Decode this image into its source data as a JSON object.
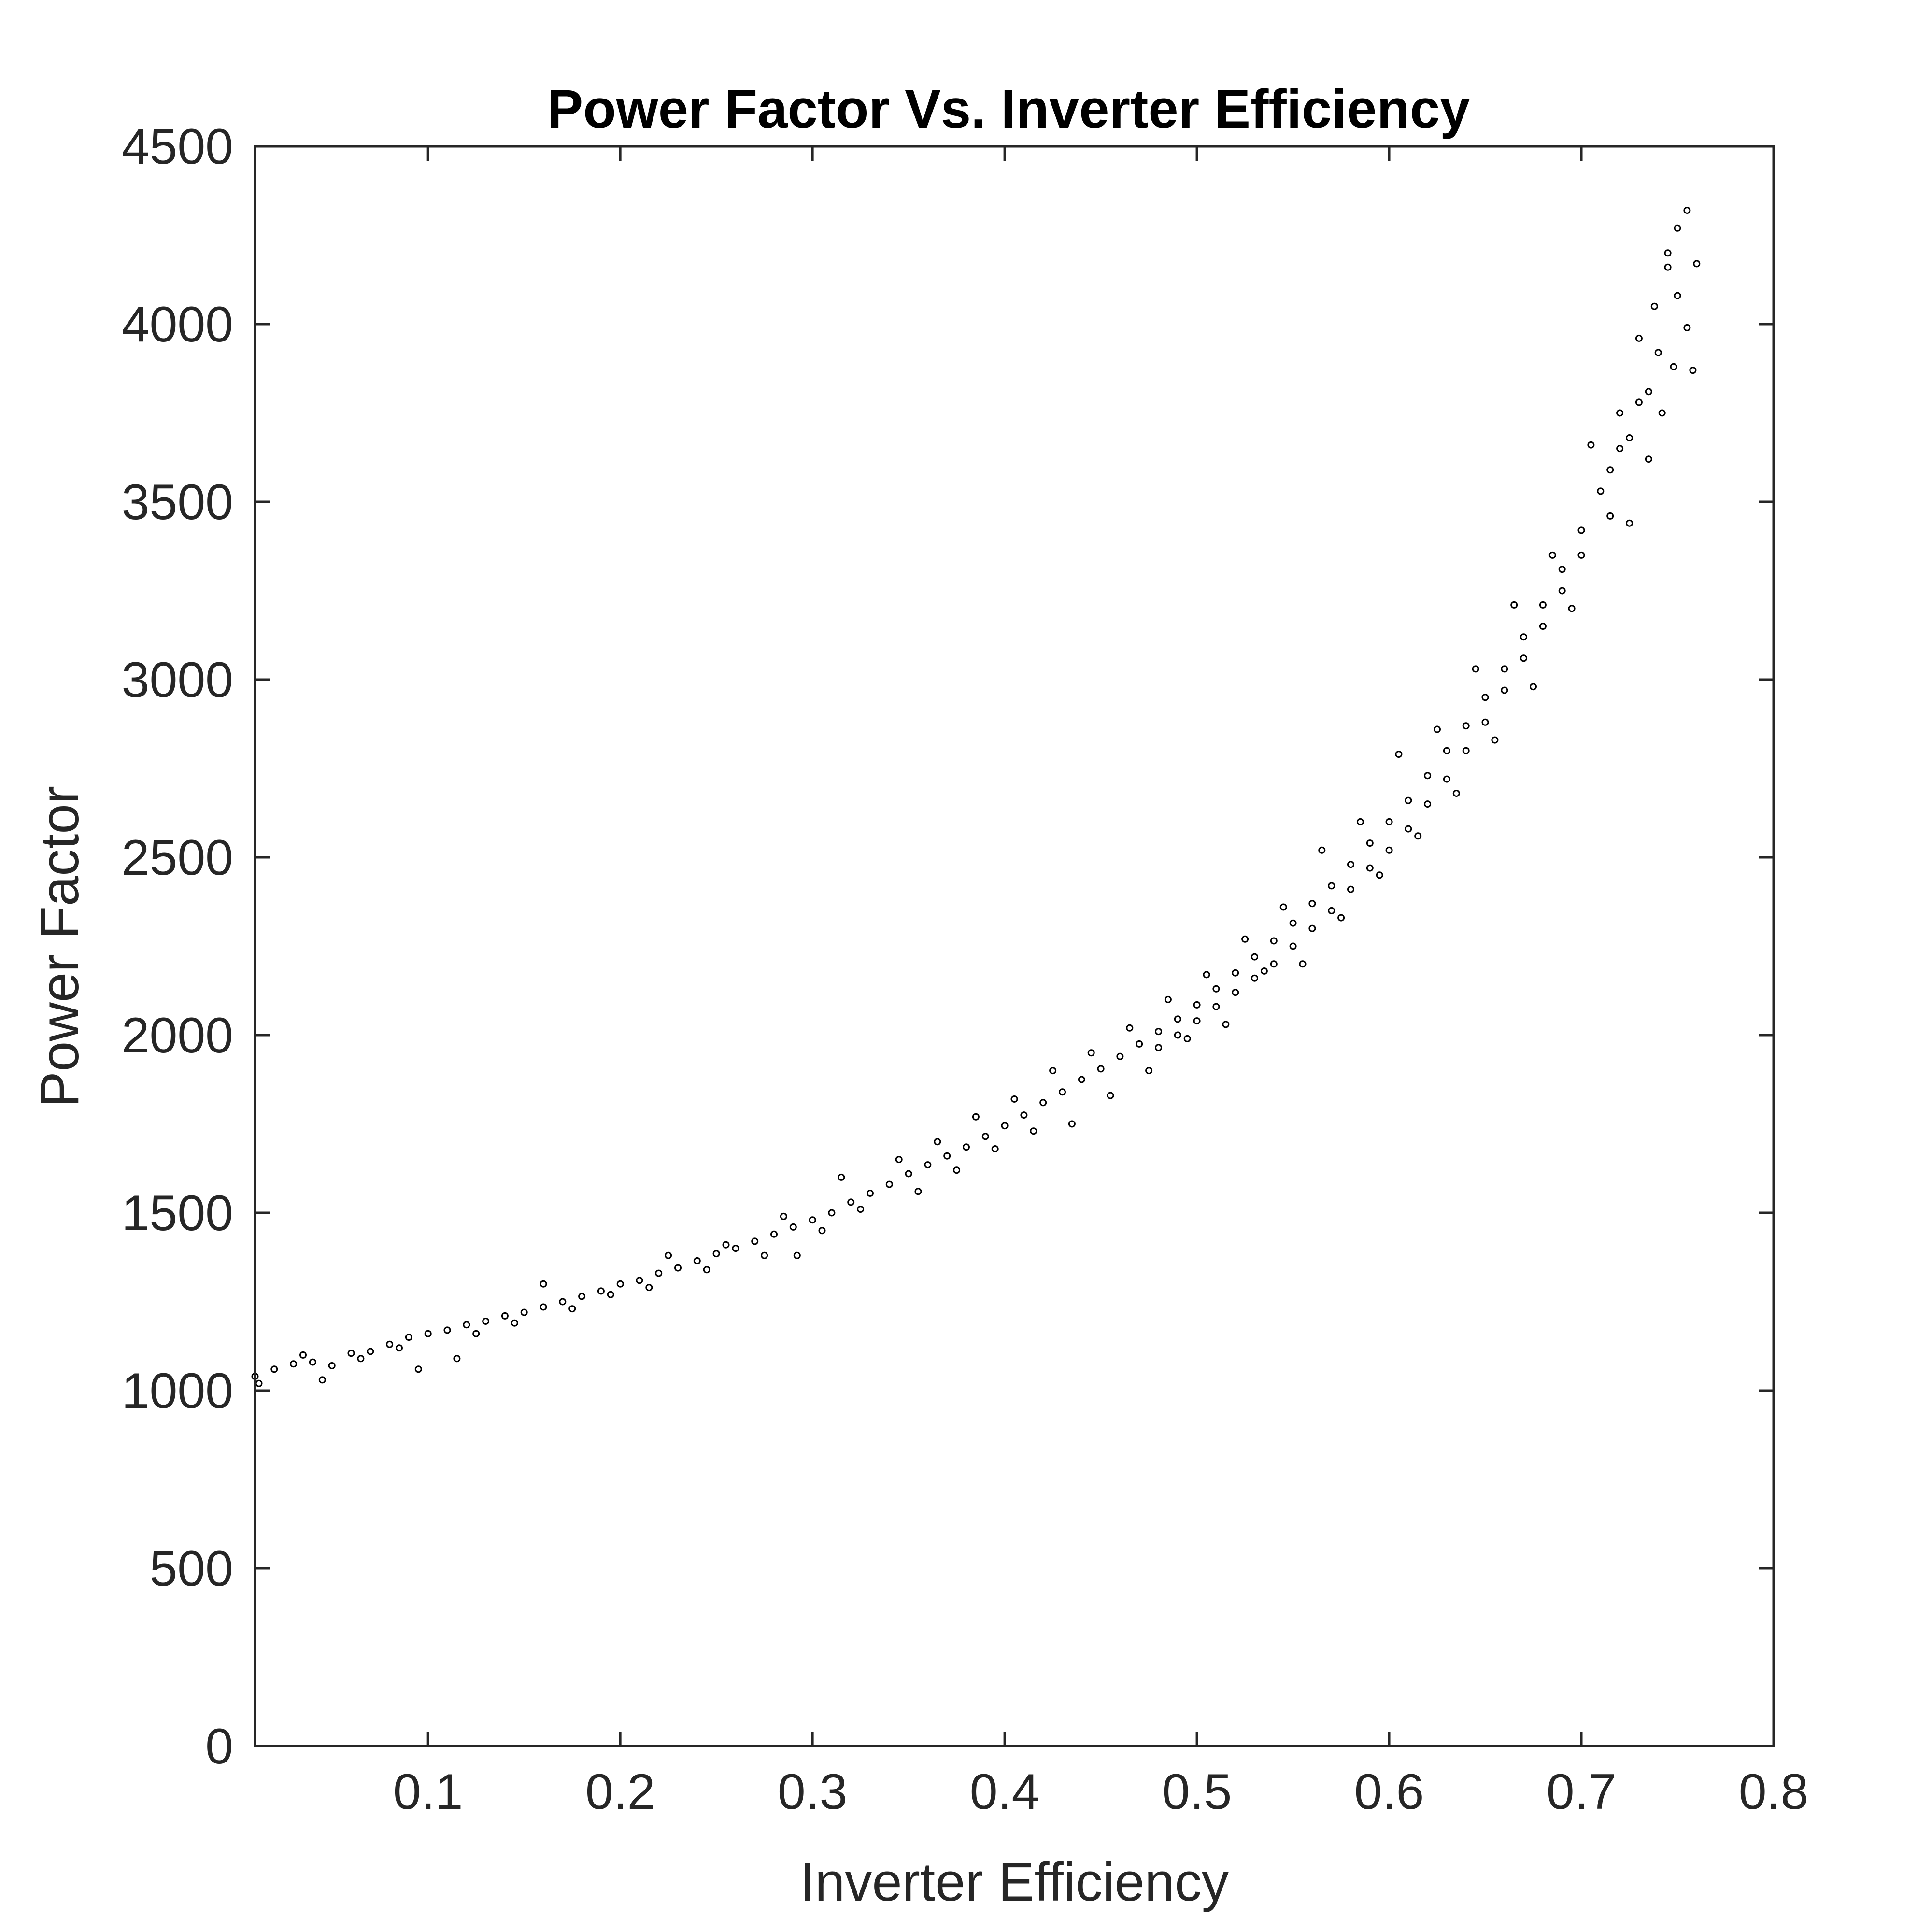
{
  "chart_data": {
    "type": "scatter",
    "title": "Power Factor Vs. Inverter Efficiency",
    "xlabel": "Inverter Efficiency",
    "ylabel": "Power Factor",
    "xlim": [
      0.01,
      0.8
    ],
    "ylim": [
      0,
      4500
    ],
    "xticks": [
      0.1,
      0.2,
      0.3,
      0.4,
      0.5,
      0.6,
      0.7,
      0.8
    ],
    "xtick_labels": [
      "0.1",
      "0.2",
      "0.3",
      "0.4",
      "0.5",
      "0.6",
      "0.7",
      "0.8"
    ],
    "yticks": [
      0,
      500,
      1000,
      1500,
      2000,
      2500,
      3000,
      3500,
      4000,
      4500
    ],
    "ytick_labels": [
      "0",
      "500",
      "1000",
      "1500",
      "2000",
      "2500",
      "3000",
      "3500",
      "4000",
      "4500"
    ],
    "grid": false,
    "legend": "none",
    "marker": "open circle",
    "colors": {
      "marker": "#000000",
      "axis": "#262626",
      "background": "#ffffff"
    },
    "series": [
      {
        "points": [
          [
            0.01,
            1040
          ],
          [
            0.02,
            1060
          ],
          [
            0.03,
            1075
          ],
          [
            0.04,
            1080
          ],
          [
            0.05,
            1070
          ],
          [
            0.06,
            1105
          ],
          [
            0.07,
            1110
          ],
          [
            0.08,
            1130
          ],
          [
            0.09,
            1150
          ],
          [
            0.1,
            1160
          ],
          [
            0.11,
            1170
          ],
          [
            0.12,
            1185
          ],
          [
            0.13,
            1195
          ],
          [
            0.14,
            1210
          ],
          [
            0.15,
            1220
          ],
          [
            0.16,
            1235
          ],
          [
            0.17,
            1250
          ],
          [
            0.18,
            1265
          ],
          [
            0.19,
            1280
          ],
          [
            0.2,
            1300
          ],
          [
            0.21,
            1310
          ],
          [
            0.22,
            1330
          ],
          [
            0.23,
            1345
          ],
          [
            0.24,
            1365
          ],
          [
            0.25,
            1385
          ],
          [
            0.26,
            1400
          ],
          [
            0.27,
            1420
          ],
          [
            0.28,
            1440
          ],
          [
            0.29,
            1460
          ],
          [
            0.3,
            1480
          ],
          [
            0.31,
            1500
          ],
          [
            0.32,
            1530
          ],
          [
            0.33,
            1555
          ],
          [
            0.34,
            1580
          ],
          [
            0.35,
            1610
          ],
          [
            0.36,
            1635
          ],
          [
            0.37,
            1660
          ],
          [
            0.38,
            1685
          ],
          [
            0.39,
            1715
          ],
          [
            0.4,
            1745
          ],
          [
            0.41,
            1775
          ],
          [
            0.42,
            1810
          ],
          [
            0.43,
            1840
          ],
          [
            0.44,
            1875
          ],
          [
            0.45,
            1905
          ],
          [
            0.46,
            1940
          ],
          [
            0.47,
            1975
          ],
          [
            0.48,
            2010
          ],
          [
            0.49,
            2045
          ],
          [
            0.5,
            2085
          ],
          [
            0.51,
            2130
          ],
          [
            0.52,
            2175
          ],
          [
            0.53,
            2220
          ],
          [
            0.54,
            2265
          ],
          [
            0.55,
            2315
          ],
          [
            0.56,
            2370
          ],
          [
            0.57,
            2420
          ],
          [
            0.58,
            2480
          ],
          [
            0.59,
            2540
          ],
          [
            0.6,
            2600
          ],
          [
            0.61,
            2660
          ],
          [
            0.62,
            2730
          ],
          [
            0.63,
            2800
          ],
          [
            0.64,
            2870
          ],
          [
            0.65,
            2950
          ],
          [
            0.66,
            3030
          ],
          [
            0.67,
            3120
          ],
          [
            0.68,
            3210
          ],
          [
            0.69,
            3310
          ],
          [
            0.7,
            3420
          ],
          [
            0.71,
            3530
          ],
          [
            0.72,
            3650
          ],
          [
            0.73,
            3780
          ],
          [
            0.74,
            3920
          ],
          [
            0.75,
            4080
          ],
          [
            0.012,
            1020
          ],
          [
            0.035,
            1100
          ],
          [
            0.045,
            1030
          ],
          [
            0.065,
            1090
          ],
          [
            0.085,
            1120
          ],
          [
            0.095,
            1060
          ],
          [
            0.115,
            1090
          ],
          [
            0.125,
            1160
          ],
          [
            0.145,
            1190
          ],
          [
            0.16,
            1300
          ],
          [
            0.175,
            1230
          ],
          [
            0.195,
            1270
          ],
          [
            0.215,
            1290
          ],
          [
            0.225,
            1380
          ],
          [
            0.245,
            1340
          ],
          [
            0.255,
            1410
          ],
          [
            0.275,
            1380
          ],
          [
            0.285,
            1490
          ],
          [
            0.292,
            1380
          ],
          [
            0.305,
            1450
          ],
          [
            0.315,
            1600
          ],
          [
            0.325,
            1510
          ],
          [
            0.345,
            1650
          ],
          [
            0.355,
            1560
          ],
          [
            0.365,
            1700
          ],
          [
            0.375,
            1620
          ],
          [
            0.385,
            1770
          ],
          [
            0.395,
            1680
          ],
          [
            0.405,
            1820
          ],
          [
            0.415,
            1730
          ],
          [
            0.425,
            1900
          ],
          [
            0.435,
            1750
          ],
          [
            0.445,
            1950
          ],
          [
            0.455,
            1830
          ],
          [
            0.465,
            2020
          ],
          [
            0.475,
            1900
          ],
          [
            0.485,
            2100
          ],
          [
            0.495,
            1990
          ],
          [
            0.505,
            2170
          ],
          [
            0.515,
            2030
          ],
          [
            0.525,
            2270
          ],
          [
            0.535,
            2180
          ],
          [
            0.545,
            2360
          ],
          [
            0.555,
            2200
          ],
          [
            0.565,
            2520
          ],
          [
            0.575,
            2330
          ],
          [
            0.585,
            2600
          ],
          [
            0.595,
            2450
          ],
          [
            0.605,
            2790
          ],
          [
            0.615,
            2560
          ],
          [
            0.625,
            2860
          ],
          [
            0.635,
            2680
          ],
          [
            0.645,
            3030
          ],
          [
            0.655,
            2830
          ],
          [
            0.665,
            3210
          ],
          [
            0.675,
            2980
          ],
          [
            0.685,
            3350
          ],
          [
            0.695,
            3200
          ],
          [
            0.705,
            3660
          ],
          [
            0.715,
            3460
          ],
          [
            0.72,
            3750
          ],
          [
            0.725,
            3440
          ],
          [
            0.73,
            3960
          ],
          [
            0.735,
            3620
          ],
          [
            0.738,
            4050
          ],
          [
            0.742,
            3750
          ],
          [
            0.745,
            4160
          ],
          [
            0.748,
            3880
          ],
          [
            0.75,
            4270
          ],
          [
            0.755,
            4320
          ],
          [
            0.755,
            3990
          ],
          [
            0.758,
            3870
          ],
          [
            0.76,
            4170
          ],
          [
            0.745,
            4200
          ],
          [
            0.735,
            3810
          ],
          [
            0.725,
            3680
          ],
          [
            0.715,
            3590
          ],
          [
            0.7,
            3350
          ],
          [
            0.69,
            3250
          ],
          [
            0.68,
            3150
          ],
          [
            0.67,
            3060
          ],
          [
            0.66,
            2970
          ],
          [
            0.65,
            2880
          ],
          [
            0.64,
            2800
          ],
          [
            0.63,
            2720
          ],
          [
            0.62,
            2650
          ],
          [
            0.61,
            2580
          ],
          [
            0.6,
            2520
          ],
          [
            0.59,
            2470
          ],
          [
            0.58,
            2410
          ],
          [
            0.57,
            2350
          ],
          [
            0.56,
            2300
          ],
          [
            0.55,
            2250
          ],
          [
            0.54,
            2200
          ],
          [
            0.53,
            2160
          ],
          [
            0.52,
            2120
          ],
          [
            0.51,
            2080
          ],
          [
            0.5,
            2040
          ],
          [
            0.49,
            2000
          ],
          [
            0.48,
            1965
          ]
        ]
      }
    ]
  }
}
